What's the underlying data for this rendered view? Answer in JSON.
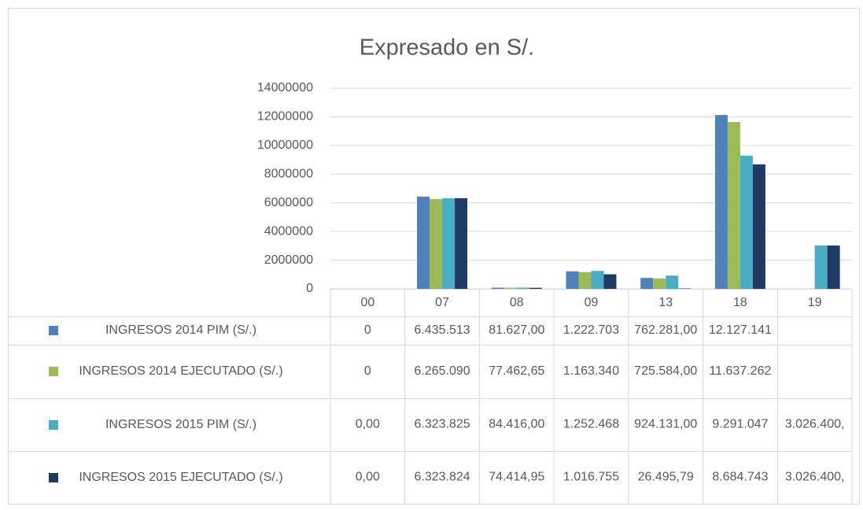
{
  "chart_data": {
    "type": "bar",
    "title": "Expresado en S/.",
    "categories": [
      "00",
      "07",
      "08",
      "09",
      "13",
      "18",
      "19"
    ],
    "series": [
      {
        "name": "INGRESOS 2014 PIM (S/.)",
        "color": "#4f81bd",
        "values": [
          0,
          6435513,
          81627,
          1222703,
          762281,
          12127141,
          null
        ],
        "value_labels": [
          "0",
          "6.435.513",
          "81.627,00",
          "1.222.703",
          "762.281,00",
          "12.127.141",
          null
        ]
      },
      {
        "name": "INGRESOS 2014 EJECUTADO (S/.)",
        "color": "#9bbb59",
        "values": [
          0,
          6265090,
          77462.65,
          1163340,
          725584,
          11637262,
          null
        ],
        "value_labels": [
          "0",
          "6.265.090",
          "77.462,65",
          "1.163.340",
          "725.584,00",
          "11.637.262",
          null
        ]
      },
      {
        "name": "INGRESOS 2015 PIM (S/.)",
        "color": "#4bacc6",
        "values": [
          0,
          6323825,
          84416,
          1252468,
          924131,
          9291047,
          3026400
        ],
        "value_labels": [
          "0,00",
          "6.323.825",
          "84.416,00",
          "1.252.468",
          "924.131,00",
          "9.291.047",
          "3.026.400,"
        ]
      },
      {
        "name": "INGRESOS 2015 EJECUTADO (S/.)",
        "color": "#1f3b63",
        "values": [
          0,
          6323824,
          74414.95,
          1016755,
          26495.79,
          8684743,
          3026400
        ],
        "value_labels": [
          "0,00",
          "6.323.824",
          "74.414,95",
          "1.016.755",
          "26.495,79",
          "8.684.743",
          "3.026.400,"
        ]
      }
    ],
    "ylim": [
      0,
      14000000
    ],
    "yticks": [
      0,
      2000000,
      4000000,
      6000000,
      8000000,
      10000000,
      12000000,
      14000000
    ],
    "grid": true
  }
}
